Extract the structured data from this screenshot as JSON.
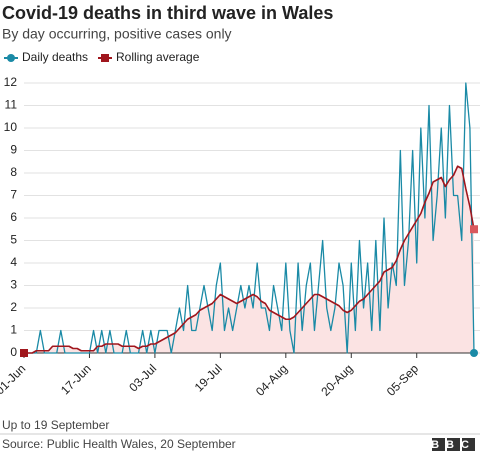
{
  "chart_data": {
    "type": "line",
    "title": "Covid-19 deaths in third wave in Wales",
    "subtitle": "By day occurring, positive cases only",
    "note": "Up to 19 September",
    "source": "Source: Public Health Wales, 20 September",
    "logo": "BBC",
    "categories": [
      "01-Jun",
      null,
      null,
      null,
      null,
      null,
      null,
      null,
      null,
      null,
      null,
      null,
      null,
      null,
      null,
      null,
      "17-Jun",
      null,
      null,
      null,
      null,
      null,
      null,
      null,
      null,
      null,
      null,
      null,
      null,
      null,
      null,
      null,
      "03-Jul",
      null,
      null,
      null,
      null,
      null,
      null,
      null,
      null,
      null,
      null,
      null,
      null,
      null,
      null,
      null,
      "19-Jul",
      null,
      null,
      null,
      null,
      null,
      null,
      null,
      null,
      null,
      null,
      null,
      null,
      null,
      null,
      null,
      "04-Aug",
      null,
      null,
      null,
      null,
      null,
      null,
      null,
      null,
      null,
      null,
      null,
      null,
      null,
      null,
      null,
      "20-Aug",
      null,
      null,
      null,
      null,
      null,
      null,
      null,
      null,
      null,
      null,
      null,
      null,
      null,
      null,
      null,
      "05-Sep",
      null,
      null,
      null,
      null,
      null,
      null,
      null,
      null,
      null,
      null,
      null,
      null,
      null,
      null
    ],
    "series": [
      {
        "name": "Daily deaths",
        "color": "#1a8aa6",
        "values": [
          0,
          0,
          0,
          0,
          1,
          0,
          0,
          0,
          0,
          1,
          0,
          0,
          0,
          0,
          0,
          0,
          0,
          1,
          0,
          1,
          0,
          1,
          0,
          0,
          0,
          1,
          0,
          0,
          0,
          1,
          0,
          1,
          0,
          1,
          1,
          1,
          0,
          1,
          2,
          1,
          3,
          1,
          1,
          2,
          3,
          2,
          1,
          3,
          4,
          1,
          2,
          1,
          2,
          3,
          2,
          3,
          2,
          4,
          2,
          2,
          1,
          3,
          2,
          1,
          4,
          1,
          0,
          4,
          1,
          3,
          4,
          1,
          3,
          5,
          2,
          1,
          2,
          4,
          3,
          0,
          4,
          1,
          5,
          2,
          4,
          1,
          5,
          1,
          6,
          2,
          4,
          3,
          9,
          3,
          5,
          9,
          4,
          10,
          6,
          11,
          5,
          7,
          10,
          6,
          11,
          7,
          7,
          5,
          12,
          10,
          0
        ]
      },
      {
        "name": "Rolling average",
        "color": "#a0161d",
        "values": [
          0,
          0,
          0,
          0.1,
          0.1,
          0.1,
          0.1,
          0.3,
          0.3,
          0.3,
          0.3,
          0.3,
          0.2,
          0.2,
          0.1,
          0.1,
          0.1,
          0.1,
          0.3,
          0.3,
          0.4,
          0.4,
          0.4,
          0.4,
          0.3,
          0.3,
          0.3,
          0.3,
          0.2,
          0.3,
          0.3,
          0.4,
          0.4,
          0.5,
          0.6,
          0.7,
          0.8,
          0.9,
          1.1,
          1.3,
          1.5,
          1.6,
          1.7,
          1.9,
          2.0,
          2.1,
          2.2,
          2.4,
          2.6,
          2.5,
          2.4,
          2.3,
          2.2,
          2.3,
          2.4,
          2.5,
          2.6,
          2.5,
          2.3,
          2.2,
          1.9,
          1.8,
          1.7,
          1.6,
          1.5,
          1.5,
          1.6,
          1.8,
          2.0,
          2.2,
          2.4,
          2.6,
          2.6,
          2.5,
          2.4,
          2.3,
          2.2,
          2.1,
          1.9,
          1.8,
          1.9,
          2.1,
          2.3,
          2.4,
          2.6,
          2.8,
          3.0,
          3.2,
          3.6,
          3.7,
          3.8,
          4.1,
          4.6,
          5.0,
          5.3,
          5.6,
          5.9,
          6.2,
          6.7,
          7.1,
          7.6,
          7.7,
          7.8,
          7.4,
          7.7,
          7.9,
          8.3,
          8.2,
          7.3,
          6.5,
          5.5
        ],
        "area_color": "#fbe3e3"
      }
    ],
    "ylim": [
      0,
      12
    ],
    "yticks": [
      0,
      1,
      2,
      3,
      4,
      5,
      6,
      7,
      8,
      9,
      10,
      11,
      12
    ],
    "grid": true
  }
}
